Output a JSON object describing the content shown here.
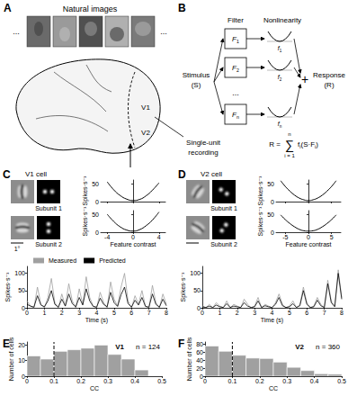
{
  "panels": {
    "A": {
      "label": "A",
      "title": "Natural images",
      "ellipsis": "...",
      "areas": [
        "V1",
        "V2"
      ],
      "annotation": [
        "Single-unit",
        "recording"
      ]
    },
    "B": {
      "label": "B",
      "headers": [
        "Filter",
        "Nonlinearity"
      ],
      "stimulus": [
        "Stimulus",
        "(S)"
      ],
      "filters": [
        {
          "text": "F",
          "sub": "1"
        },
        {
          "text": "F",
          "sub": "2"
        },
        {
          "text": "F",
          "sub": "n"
        }
      ],
      "nonlinearities": [
        {
          "text": "f",
          "sub": "1"
        },
        {
          "text": "f",
          "sub": "2"
        },
        {
          "text": "f",
          "sub": "n"
        }
      ],
      "ellipsis": "...",
      "sum": "+",
      "response": [
        "Response",
        "(R)"
      ],
      "formula": {
        "lhs": "R =",
        "symbol": "∑",
        "upper": "n",
        "lower": "i = 1",
        "term": [
          {
            "text": "f"
          },
          {
            "sub": "i"
          },
          {
            "text": "(S·F"
          },
          {
            "sub": "i"
          },
          {
            "text": ")"
          }
        ]
      }
    },
    "C": {
      "label": "C",
      "cell": "V1 cell",
      "subunits": [
        "Subunit 1",
        "Subunit 2"
      ],
      "scale_bar": "1°"
    },
    "D": {
      "label": "D",
      "cell": "V2 cell",
      "subunits": [
        "Subunit 1",
        "Subunit 2"
      ]
    },
    "E": {
      "label": "E"
    },
    "F": {
      "label": "F"
    }
  },
  "chart_data": [
    {
      "type": "line",
      "x": [
        -4,
        -3,
        -2,
        -1,
        0,
        1,
        2,
        3,
        4
      ],
      "values": [
        55,
        33,
        17,
        7,
        3,
        6,
        16,
        32,
        52
      ],
      "color": "#000000",
      "xlim": [
        -5,
        5
      ],
      "xticks": [
        -4,
        0,
        4
      ],
      "ylim": [
        0,
        60
      ],
      "yticks": [
        0,
        50
      ],
      "y_label": "Spikes·s⁻¹",
      "tick_labels": "y"
    },
    {
      "type": "line",
      "x": [
        -4,
        -3,
        -2,
        -1,
        0,
        1,
        2,
        3,
        4
      ],
      "values": [
        50,
        30,
        15,
        6,
        3,
        7,
        18,
        34,
        56
      ],
      "color": "#000000",
      "xlim": [
        -5,
        5
      ],
      "xticks": [
        -4,
        0,
        4
      ],
      "ylim": [
        0,
        60
      ],
      "yticks": [
        0,
        50
      ],
      "x_label": "Feature contrast",
      "y_label": "Spikes·s⁻¹"
    },
    {
      "type": "line",
      "x": [
        0,
        0.2,
        0.4,
        0.6,
        0.8,
        1,
        1.2,
        1.4,
        1.6,
        1.8,
        2,
        2.2,
        2.4,
        2.6,
        2.8,
        3,
        3.2,
        3.4,
        3.6,
        3.8,
        4,
        4.2,
        4.4,
        4.6,
        4.8,
        5,
        5.2,
        5.4,
        5.6,
        5.8,
        6,
        6.2,
        6.4,
        6.6,
        6.8,
        7,
        7.2,
        7.4,
        7.6,
        7.8,
        8
      ],
      "series": [
        {
          "name": "Measured",
          "color": "#a0a0a0",
          "values": [
            20,
            5,
            0,
            60,
            10,
            0,
            30,
            85,
            15,
            0,
            40,
            5,
            70,
            20,
            0,
            55,
            10,
            90,
            30,
            5,
            0,
            45,
            15,
            0,
            75,
            25,
            5,
            60,
            100,
            20,
            0,
            35,
            10,
            50,
            5,
            0,
            65,
            15,
            0,
            40,
            10
          ]
        },
        {
          "name": "Predicted",
          "color": "#000000",
          "values": [
            10,
            5,
            2,
            35,
            8,
            3,
            20,
            50,
            10,
            2,
            25,
            5,
            40,
            12,
            3,
            30,
            8,
            55,
            20,
            4,
            2,
            28,
            10,
            3,
            45,
            15,
            4,
            38,
            60,
            12,
            2,
            22,
            8,
            30,
            4,
            2,
            40,
            10,
            2,
            25,
            6
          ]
        }
      ],
      "xlim": [
        0,
        8
      ],
      "xticks": [
        0,
        1,
        2,
        3,
        4,
        5,
        6,
        7,
        8
      ],
      "ylim": [
        0,
        120
      ],
      "yticks": [
        0,
        50,
        100
      ],
      "x_label": "Time (s)",
      "y_label": "Spikes·s⁻¹",
      "legend": "top-left"
    },
    {
      "type": "line",
      "x": [
        -6,
        -5,
        -4,
        -3,
        -2,
        -1,
        0,
        1,
        2,
        3,
        4,
        5,
        6
      ],
      "values": [
        58,
        42,
        29,
        18,
        10,
        5,
        3,
        5,
        10,
        18,
        29,
        42,
        58
      ],
      "color": "#000000",
      "xlim": [
        -7,
        7
      ],
      "xticks": [
        -5,
        0,
        5
      ],
      "ylim": [
        0,
        60
      ],
      "yticks": [
        0,
        50
      ],
      "y_label": "Spikes·s⁻¹",
      "tick_labels": "y"
    },
    {
      "type": "line",
      "x": [
        -6,
        -5,
        -4,
        -3,
        -2,
        -1,
        0,
        1,
        2,
        3,
        4,
        5,
        6
      ],
      "values": [
        48,
        35,
        24,
        15,
        8,
        4,
        3,
        4,
        8,
        15,
        24,
        35,
        48
      ],
      "color": "#000000",
      "xlim": [
        -7,
        7
      ],
      "xticks": [
        -5,
        0,
        5
      ],
      "ylim": [
        0,
        60
      ],
      "yticks": [
        0,
        50
      ],
      "x_label": "Feature contrast",
      "y_label": "Spikes·s⁻¹"
    },
    {
      "type": "line",
      "x": [
        0,
        0.2,
        0.4,
        0.6,
        0.8,
        1,
        1.2,
        1.4,
        1.6,
        1.8,
        2,
        2.2,
        2.4,
        2.6,
        2.8,
        3,
        3.2,
        3.4,
        3.6,
        3.8,
        4,
        4.2,
        4.4,
        4.6,
        4.8,
        5,
        5.2,
        5.4,
        5.6,
        5.8,
        6,
        6.2,
        6.4,
        6.6,
        6.8,
        7,
        7.2,
        7.4,
        7.6,
        7.8,
        8
      ],
      "series": [
        {
          "color": "#a0a0a0",
          "values": [
            5,
            0,
            10,
            0,
            15,
            5,
            0,
            20,
            0,
            10,
            5,
            0,
            25,
            10,
            0,
            5,
            30,
            0,
            10,
            5,
            0,
            15,
            40,
            10,
            0,
            5,
            20,
            0,
            10,
            60,
            15,
            0,
            5,
            30,
            10,
            0,
            80,
            20,
            5,
            110,
            30
          ]
        },
        {
          "color": "#000000",
          "values": [
            3,
            1,
            5,
            1,
            8,
            3,
            1,
            12,
            1,
            5,
            3,
            1,
            15,
            5,
            1,
            3,
            20,
            1,
            6,
            3,
            1,
            10,
            30,
            6,
            1,
            3,
            12,
            1,
            6,
            50,
            10,
            1,
            3,
            22,
            6,
            1,
            70,
            15,
            3,
            100,
            25
          ]
        }
      ],
      "xlim": [
        0,
        8
      ],
      "xticks": [
        0,
        1,
        2,
        3,
        4,
        5,
        6,
        7,
        8
      ],
      "ylim": [
        0,
        120
      ],
      "yticks": [
        0,
        50,
        100
      ],
      "x_label": "Time (s)",
      "y_label": "Spikes·s⁻¹"
    },
    {
      "type": "histogram",
      "bins": [
        0,
        0.05,
        0.1,
        0.15,
        0.2,
        0.25,
        0.3,
        0.35,
        0.4,
        0.45
      ],
      "counts": [
        13,
        11,
        16,
        17,
        18,
        20,
        14,
        11,
        4
      ],
      "color": "#a0a0a0",
      "xlim": [
        0,
        0.5
      ],
      "xticks": [
        0,
        0.1,
        0.2,
        0.3,
        0.4,
        0.5
      ],
      "ylim": [
        0,
        22
      ],
      "yticks": [
        0,
        10,
        20
      ],
      "x_label": "CC",
      "y_label": "Number of cells",
      "threshold": 0.1,
      "annotation": [
        "V1",
        "n = 124"
      ]
    },
    {
      "type": "histogram",
      "bins": [
        0,
        0.05,
        0.1,
        0.15,
        0.2,
        0.25,
        0.3,
        0.35,
        0.4,
        0.45,
        0.5
      ],
      "counts": [
        75,
        62,
        52,
        45,
        44,
        35,
        22,
        14,
        6,
        5
      ],
      "color": "#a0a0a0",
      "xlim": [
        0,
        0.5
      ],
      "xticks": [
        0,
        0.1,
        0.2,
        0.3,
        0.4,
        0.5
      ],
      "ylim": [
        0,
        85
      ],
      "yticks": [
        0,
        20,
        40,
        60,
        80
      ],
      "x_label": "CC",
      "y_label": "Number of cells",
      "threshold": 0.1,
      "annotation": [
        "V2",
        "n = 360"
      ]
    }
  ]
}
